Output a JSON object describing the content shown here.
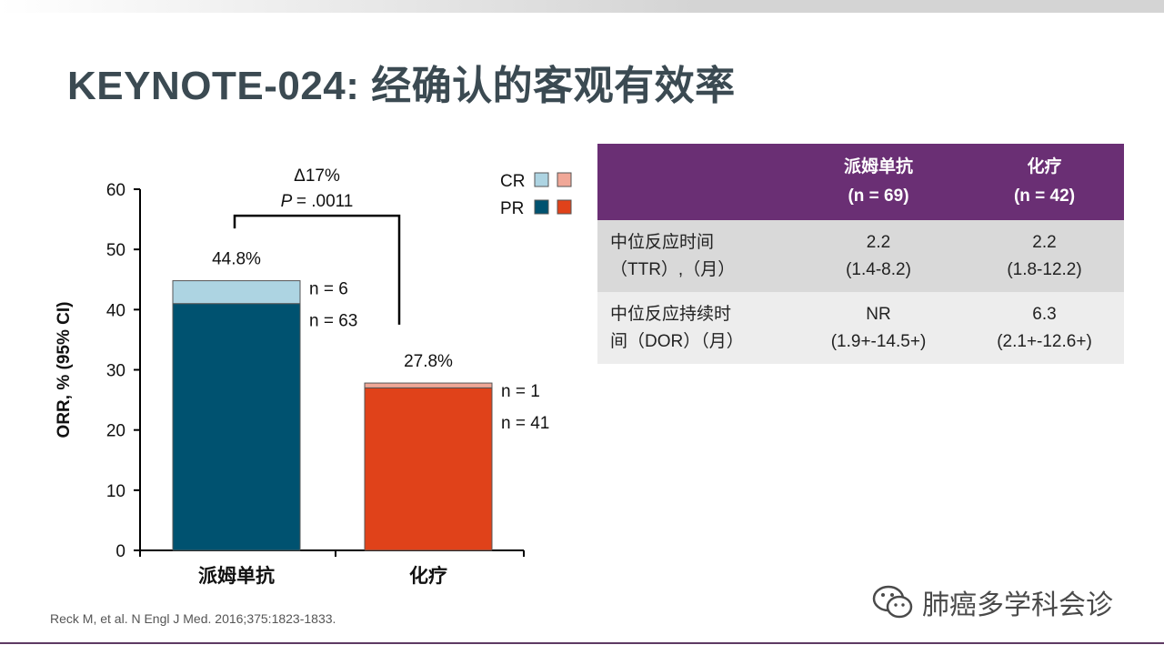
{
  "slide": {
    "title": "KEYNOTE-024: 经确认的客观有效率",
    "reference": "Reck M, et al. N Engl J Med. 2016;375:1823-1833.",
    "watermark": "肺癌多学科会诊",
    "watermark_icon": "wechat-icon"
  },
  "chart_data": {
    "type": "bar",
    "stacked": true,
    "categories": [
      "派姆单抗",
      "化疗"
    ],
    "series": [
      {
        "name": "PR",
        "values": [
          41.0,
          27.0
        ],
        "counts": [
          "n = 63",
          "n = 41"
        ],
        "colors": [
          "#005270",
          "#e0421a"
        ]
      },
      {
        "name": "CR",
        "values": [
          3.8,
          0.8
        ],
        "counts": [
          "n = 6",
          "n = 1"
        ],
        "colors": [
          "#add4e2",
          "#f0a797"
        ]
      }
    ],
    "totals": [
      44.8,
      27.8
    ],
    "total_labels": [
      "44.8%",
      "27.8%"
    ],
    "ylabel": "ORR, % (95% CI)",
    "xlabel": "",
    "ylim": [
      0,
      60
    ],
    "yticks": [
      0,
      10,
      20,
      30,
      40,
      50,
      60
    ],
    "annotation": {
      "delta": "Δ17%",
      "p_prefix": "P",
      "p_value": "= .0011"
    },
    "legend": {
      "position": "top-right",
      "labels": [
        "CR",
        "PR"
      ]
    }
  },
  "table": {
    "headers": [
      {
        "line1": "",
        "line2": ""
      },
      {
        "line1": "派姆单抗",
        "line2": "(n = 69)"
      },
      {
        "line1": "化疗",
        "line2": "(n = 42)"
      }
    ],
    "rows": [
      {
        "label_line1": "中位反应时间",
        "label_line2": "（TTR）,（月）",
        "c1_line1": "2.2",
        "c1_line2": "(1.4-8.2)",
        "c2_line1": "2.2",
        "c2_line2": "(1.8-12.2)"
      },
      {
        "label_line1": "中位反应持续时",
        "label_line2": "间（DOR）（月）",
        "c1_line1": "NR",
        "c1_line2": "(1.9+-14.5+)",
        "c2_line1": "6.3",
        "c2_line2": "(2.1+-12.6+)"
      }
    ]
  }
}
